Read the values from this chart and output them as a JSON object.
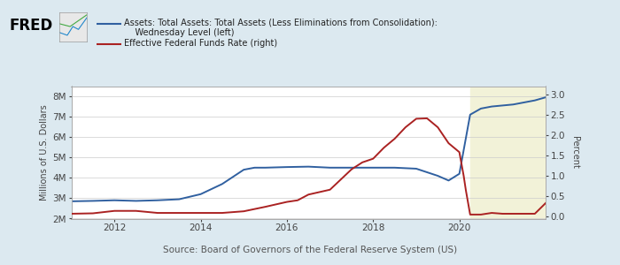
{
  "background_color": "#dce9f0",
  "plot_bg_color": "#ffffff",
  "highlight_bg_color": "#f2f2d8",
  "highlight_start": 2020.25,
  "highlight_end": 2022.0,
  "ylabel_left": "Millions of U.S. Dollars",
  "ylabel_right": "Percent",
  "source_text": "Source: Board of Governors of the Federal Reserve System (US)",
  "ylim_left": [
    2000000,
    8500000
  ],
  "ylim_right": [
    -0.05,
    3.2
  ],
  "yticks_left": [
    2000000,
    3000000,
    4000000,
    5000000,
    6000000,
    7000000,
    8000000
  ],
  "ytick_labels_left": [
    "2M",
    "3M",
    "4M",
    "5M",
    "6M",
    "7M",
    "8M"
  ],
  "yticks_right": [
    0.0,
    0.5,
    1.0,
    1.5,
    2.0,
    2.5,
    3.0
  ],
  "ytick_labels_right": [
    "0.0",
    "0.5",
    "1.0",
    "1.5",
    "2.0",
    "2.5",
    "3.0"
  ],
  "xlim": [
    2011.0,
    2022.0
  ],
  "xticks": [
    2012,
    2014,
    2016,
    2018,
    2020
  ],
  "blue_color": "#3060a0",
  "red_color": "#aa2222",
  "legend_title1": "Assets: Total Assets: Total Assets (Less Eliminations from Consolidation):",
  "legend_title2": "    Wednesday Level (left)",
  "legend_title3": "Effective Federal Funds Rate (right)",
  "blue_x": [
    2011.0,
    2011.5,
    2012.0,
    2012.5,
    2013.0,
    2013.5,
    2014.0,
    2014.5,
    2015.0,
    2015.25,
    2015.5,
    2016.0,
    2016.5,
    2017.0,
    2017.5,
    2018.0,
    2018.5,
    2019.0,
    2019.5,
    2019.75,
    2020.0,
    2020.25,
    2020.5,
    2020.75,
    2021.0,
    2021.25,
    2021.5,
    2021.75,
    2022.0
  ],
  "blue_y": [
    2850000,
    2870000,
    2900000,
    2870000,
    2900000,
    2950000,
    3200000,
    3700000,
    4400000,
    4500000,
    4500000,
    4530000,
    4550000,
    4500000,
    4500000,
    4500000,
    4500000,
    4450000,
    4100000,
    3870000,
    4200000,
    7100000,
    7400000,
    7500000,
    7550000,
    7600000,
    7700000,
    7800000,
    7950000
  ],
  "red_x": [
    2011.0,
    2011.5,
    2012.0,
    2012.5,
    2013.0,
    2013.5,
    2014.0,
    2014.5,
    2015.0,
    2015.5,
    2016.0,
    2016.25,
    2016.5,
    2017.0,
    2017.25,
    2017.5,
    2017.75,
    2018.0,
    2018.25,
    2018.5,
    2018.75,
    2019.0,
    2019.25,
    2019.5,
    2019.75,
    2020.0,
    2020.1,
    2020.15,
    2020.25,
    2020.5,
    2020.75,
    2021.0,
    2021.25,
    2021.5,
    2021.75,
    2022.0
  ],
  "red_y": [
    0.07,
    0.08,
    0.14,
    0.14,
    0.09,
    0.09,
    0.09,
    0.09,
    0.13,
    0.24,
    0.36,
    0.4,
    0.54,
    0.66,
    0.91,
    1.16,
    1.33,
    1.42,
    1.69,
    1.91,
    2.19,
    2.4,
    2.41,
    2.19,
    1.8,
    1.58,
    1.0,
    0.65,
    0.05,
    0.05,
    0.09,
    0.07,
    0.07,
    0.07,
    0.07,
    0.33
  ]
}
